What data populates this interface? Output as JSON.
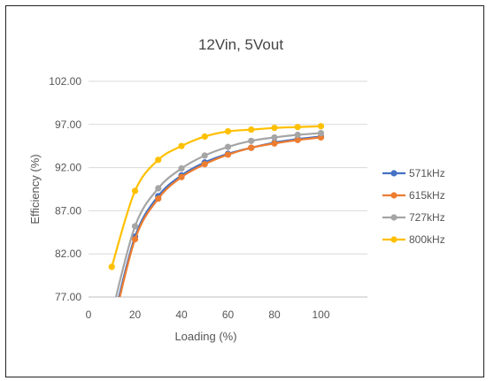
{
  "chart_data": {
    "type": "line",
    "title": "12Vin, 5Vout",
    "xlabel": "Loading (%)",
    "ylabel": "Efficiency (%)",
    "xlim": [
      0,
      120
    ],
    "ylim": [
      77,
      102
    ],
    "xticks": [
      "0",
      "20",
      "40",
      "60",
      "80",
      "100"
    ],
    "yticks": [
      "77.00",
      "82.00",
      "87.00",
      "92.00",
      "97.00",
      "102.00"
    ],
    "grid": "horizontal",
    "legend_position": "right",
    "series": [
      {
        "name": "571kHz",
        "color": "#4472C4",
        "x": [
          10,
          20,
          30,
          40,
          50,
          60,
          70,
          80,
          90,
          100
        ],
        "y": [
          73.5,
          84.0,
          88.7,
          91.1,
          92.6,
          93.6,
          94.3,
          94.9,
          95.3,
          95.6
        ]
      },
      {
        "name": "615kHz",
        "color": "#ED7D31",
        "x": [
          10,
          20,
          30,
          40,
          50,
          60,
          70,
          80,
          90,
          100
        ],
        "y": [
          73.0,
          83.7,
          88.4,
          90.9,
          92.4,
          93.5,
          94.3,
          94.8,
          95.2,
          95.5
        ]
      },
      {
        "name": "727kHz",
        "color": "#A5A5A5",
        "x": [
          10,
          20,
          30,
          40,
          50,
          60,
          70,
          80,
          90,
          100
        ],
        "y": [
          75.0,
          85.2,
          89.6,
          91.9,
          93.4,
          94.4,
          95.1,
          95.5,
          95.8,
          96.0
        ]
      },
      {
        "name": "800kHz",
        "color": "#FFC000",
        "x": [
          10,
          20,
          30,
          40,
          50,
          60,
          70,
          80,
          90,
          100
        ],
        "y": [
          80.5,
          89.3,
          92.9,
          94.5,
          95.6,
          96.2,
          96.4,
          96.6,
          96.7,
          96.8
        ]
      }
    ]
  }
}
